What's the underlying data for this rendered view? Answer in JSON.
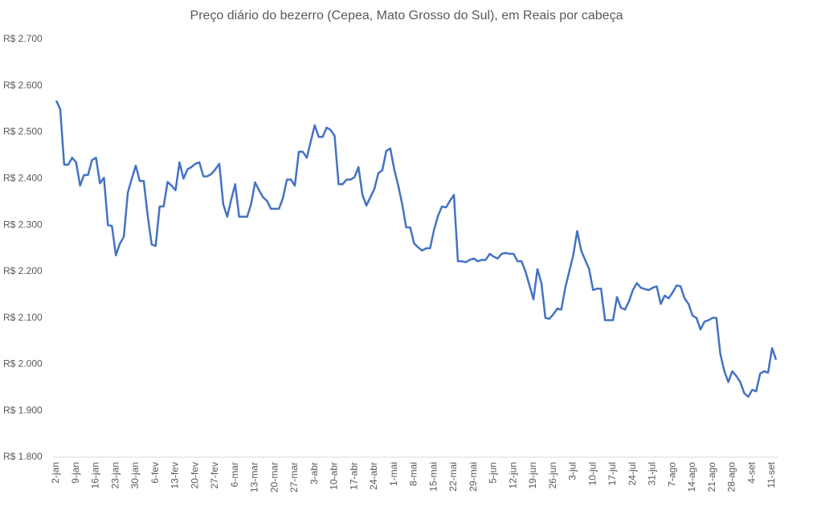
{
  "chart_data": {
    "type": "line",
    "title": "Preço diário do bezerro (Cepea, Mato Grosso do Sul), em Reais por cabeça",
    "categories": [
      "2-jan",
      null,
      null,
      null,
      null,
      "9-jan",
      null,
      null,
      null,
      null,
      "16-jan",
      null,
      null,
      null,
      null,
      "23-jan",
      null,
      null,
      null,
      null,
      "30-jan",
      null,
      null,
      null,
      null,
      "6-fev",
      null,
      null,
      null,
      null,
      "13-fev",
      null,
      null,
      null,
      null,
      "20-fev",
      null,
      null,
      null,
      null,
      "27-fev",
      null,
      null,
      null,
      null,
      "6-mar",
      null,
      null,
      null,
      null,
      "13-mar",
      null,
      null,
      null,
      null,
      "20-mar",
      null,
      null,
      null,
      null,
      "27-mar",
      null,
      null,
      null,
      null,
      "3-abr",
      null,
      null,
      null,
      null,
      "10-abr",
      null,
      null,
      null,
      null,
      "17-abr",
      null,
      null,
      null,
      null,
      "24-abr",
      null,
      null,
      null,
      null,
      "1-mai",
      null,
      null,
      null,
      null,
      "8-mai",
      null,
      null,
      null,
      null,
      "15-mai",
      null,
      null,
      null,
      null,
      "22-mai",
      null,
      null,
      null,
      null,
      "29-mai",
      null,
      null,
      null,
      null,
      "5-jun",
      null,
      null,
      null,
      null,
      "12-jun",
      null,
      null,
      null,
      null,
      "19-jun",
      null,
      null,
      null,
      null,
      "26-jun",
      null,
      null,
      null,
      null,
      "3-jul",
      null,
      null,
      null,
      null,
      "10-jul",
      null,
      null,
      null,
      null,
      "17-jul",
      null,
      null,
      null,
      null,
      "24-jul",
      null,
      null,
      null,
      null,
      "31-jul",
      null,
      null,
      null,
      null,
      "7-ago",
      null,
      null,
      null,
      null,
      "14-ago",
      null,
      null,
      null,
      null,
      "21-ago",
      null,
      null,
      null,
      null,
      "28-ago",
      null,
      null,
      null,
      null,
      "4-set",
      null,
      null,
      null,
      null,
      "11-set",
      null
    ],
    "series": [
      {
        "name": "Preço",
        "color": "#4472c4",
        "values": [
          2568,
          2550,
          2430,
          2430,
          2445,
          2435,
          2385,
          2408,
          2408,
          2440,
          2445,
          2390,
          2402,
          2300,
          2298,
          2235,
          2260,
          2275,
          2370,
          2400,
          2428,
          2395,
          2395,
          2320,
          2258,
          2255,
          2340,
          2340,
          2393,
          2385,
          2375,
          2435,
          2400,
          2420,
          2425,
          2432,
          2435,
          2405,
          2405,
          2410,
          2420,
          2432,
          2345,
          2318,
          2355,
          2388,
          2318,
          2318,
          2318,
          2345,
          2392,
          2375,
          2360,
          2352,
          2335,
          2335,
          2335,
          2358,
          2398,
          2398,
          2385,
          2458,
          2458,
          2445,
          2480,
          2515,
          2490,
          2490,
          2510,
          2505,
          2492,
          2388,
          2388,
          2398,
          2398,
          2403,
          2425,
          2365,
          2342,
          2360,
          2378,
          2412,
          2418,
          2460,
          2465,
          2420,
          2385,
          2345,
          2295,
          2295,
          2260,
          2252,
          2245,
          2250,
          2250,
          2290,
          2320,
          2340,
          2338,
          2352,
          2365,
          2222,
          2222,
          2220,
          2225,
          2228,
          2222,
          2225,
          2225,
          2238,
          2232,
          2228,
          2238,
          2240,
          2238,
          2238,
          2222,
          2222,
          2200,
          2170,
          2140,
          2205,
          2175,
          2100,
          2098,
          2108,
          2120,
          2118,
          2165,
          2200,
          2235,
          2287,
          2245,
          2225,
          2205,
          2160,
          2163,
          2163,
          2095,
          2095,
          2095,
          2145,
          2122,
          2118,
          2135,
          2160,
          2175,
          2165,
          2162,
          2160,
          2165,
          2168,
          2130,
          2148,
          2142,
          2155,
          2170,
          2168,
          2142,
          2130,
          2105,
          2100,
          2075,
          2092,
          2095,
          2100,
          2100,
          2022,
          1985,
          1962,
          1985,
          1975,
          1962,
          1938,
          1930,
          1945,
          1942,
          1980,
          1985,
          1982,
          2035,
          2010
        ]
      }
    ],
    "ylim": [
      1800,
      2700
    ],
    "yticks": [
      {
        "value": 1800,
        "label": "R$ 1.800"
      },
      {
        "value": 1900,
        "label": "R$ 1.900"
      },
      {
        "value": 2000,
        "label": "R$ 2.000"
      },
      {
        "value": 2100,
        "label": "R$ 2.100"
      },
      {
        "value": 2200,
        "label": "R$ 2.200"
      },
      {
        "value": 2300,
        "label": "R$ 2.300"
      },
      {
        "value": 2400,
        "label": "R$ 2.400"
      },
      {
        "value": 2500,
        "label": "R$ 2.500"
      },
      {
        "value": 2600,
        "label": "R$ 2.600"
      },
      {
        "value": 2700,
        "label": "R$ 2.700"
      }
    ],
    "grid": false
  }
}
